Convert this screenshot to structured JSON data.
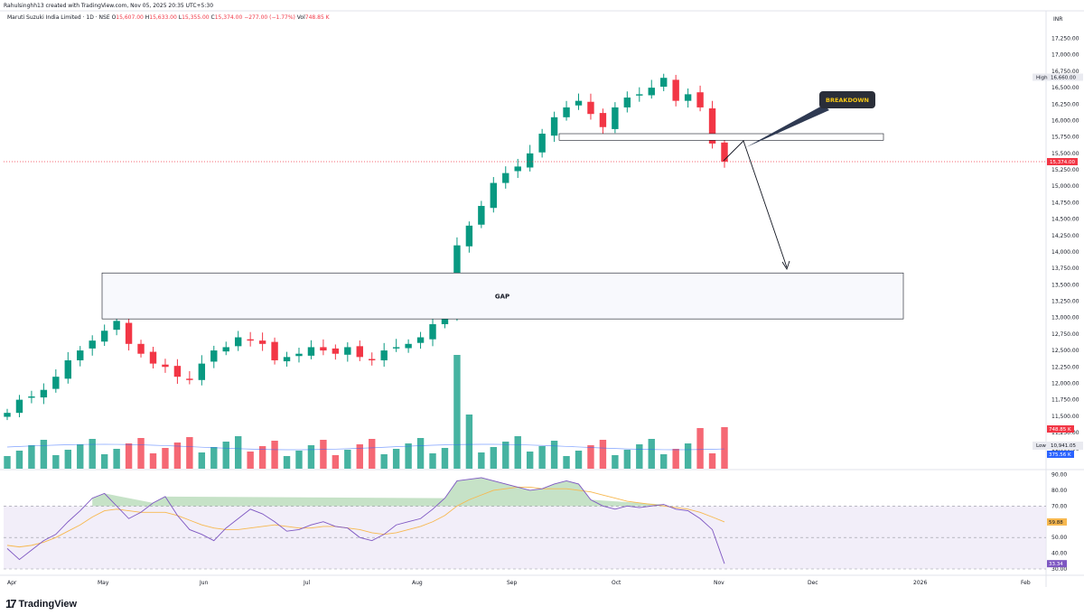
{
  "header": {
    "credit": "Rahulsinghh13 created with TradingView.com, Nov 05, 2025 20:35 UTC+5:30",
    "symbol": "Maruti Suzuki India Limited · 1D · NSE",
    "ohlc": [
      {
        "key": "O",
        "value": "15,607.00"
      },
      {
        "key": "H",
        "value": "15,633.00"
      },
      {
        "key": "L",
        "value": "15,355.00"
      },
      {
        "key": "C",
        "value": "15,374.00"
      },
      {
        "key": "",
        "value": "−277.00 (−1.77%)"
      },
      {
        "key": "Vol",
        "value": "748.85 K"
      }
    ],
    "currency": "INR"
  },
  "branding": {
    "logo_text": "TradingView",
    "logo_mark": "17"
  },
  "colors": {
    "up": "#089981",
    "down": "#f23645",
    "rsi": "#7e57c2",
    "rsi_ma": "#f7b84f",
    "rsi_band": "#ede7f6",
    "price_line": "#f23645",
    "breakdown_bg": "#2a2e39",
    "breakdown_text": "#f7c815",
    "hl_bg": "#e9eaf0",
    "vol_ma": "#2962ff"
  },
  "chart_data": {
    "type": "candlestick",
    "price_axis": {
      "ylim": [
        10700,
        17450
      ],
      "ticks": [
        "17,250.00",
        "17,000.00",
        "16,750.00",
        "16,500.00",
        "16,250.00",
        "16,000.00",
        "15,750.00",
        "15,500.00",
        "15,250.00",
        "15,000.00",
        "14,750.00",
        "14,500.00",
        "14,250.00",
        "14,000.00",
        "13,750.00",
        "13,500.00",
        "13,250.00",
        "13,000.00",
        "12,750.00",
        "12,500.00",
        "12,250.00",
        "12,000.00",
        "11,750.00",
        "11,500.00",
        "11,250.00",
        "11,000.00"
      ]
    },
    "time_axis": [
      "Apr",
      "May",
      "Jun",
      "Jul",
      "Aug",
      "Sep",
      "Oct",
      "Nov",
      "Dec",
      "2026",
      "Feb"
    ],
    "candles_start": "2025-04-01",
    "candles_end": "2025-11-05",
    "close_path": [
      11550,
      11750,
      11800,
      11900,
      12100,
      12350,
      12500,
      12650,
      12800,
      12950,
      12600,
      12450,
      12300,
      12250,
      12100,
      12050,
      12300,
      12500,
      12550,
      12700,
      12650,
      12600,
      12350,
      12400,
      12450,
      12550,
      12500,
      12450,
      12550,
      12400,
      12350,
      12500,
      12550,
      12600,
      12700,
      12900,
      13000,
      14100,
      14400,
      14700,
      15050,
      15200,
      15300,
      15500,
      15800,
      16050,
      16200,
      16300,
      16100,
      15900,
      16200,
      16350,
      16400,
      16500,
      16650,
      16300,
      16400,
      16200,
      15650,
      15374
    ],
    "last_close": "15,374.00",
    "session_high": "16,660.00",
    "session_low": "10,941.05",
    "volume_last": "748.85 K",
    "volume_ma": "375.56 K",
    "gap_zone": {
      "from": 12980,
      "to": 13680,
      "label": "GAP"
    },
    "breakdown_zone": {
      "from": 15700,
      "to": 15800
    },
    "annotation": "BREAKDOWN",
    "rsi": {
      "ylim": [
        30,
        92
      ],
      "ticks": [
        "90.00",
        "80.00",
        "70.00",
        "60.00",
        "50.00",
        "40.00",
        "30.00"
      ],
      "value": "33.34",
      "ma_value": "59.88",
      "band": [
        30,
        70
      ],
      "midline": 50,
      "path": [
        43,
        36,
        42,
        48,
        52,
        60,
        67,
        75,
        78,
        70,
        62,
        66,
        72,
        76,
        64,
        55,
        52,
        48,
        56,
        62,
        68,
        65,
        60,
        54,
        55,
        58,
        60,
        57,
        56,
        50,
        48,
        52,
        58,
        60,
        62,
        68,
        75,
        86,
        87,
        88,
        86,
        84,
        82,
        80,
        81,
        84,
        86,
        84,
        74,
        70,
        68,
        70,
        69,
        70,
        71,
        68,
        67,
        62,
        55,
        33.34
      ],
      "ma_path": [
        45,
        44,
        45,
        47,
        50,
        54,
        58,
        63,
        67,
        68,
        67,
        66,
        66,
        66,
        64,
        61,
        58,
        56,
        55,
        55,
        56,
        57,
        58,
        57,
        56,
        56,
        57,
        57,
        56,
        55,
        53,
        52,
        53,
        55,
        57,
        60,
        64,
        70,
        74,
        77,
        80,
        81,
        82,
        82,
        81,
        81,
        81,
        80,
        79,
        77,
        75,
        73,
        72,
        71,
        70,
        69,
        68,
        66,
        63,
        59.88
      ]
    },
    "labels": {
      "high": "High",
      "low": "Low"
    }
  }
}
